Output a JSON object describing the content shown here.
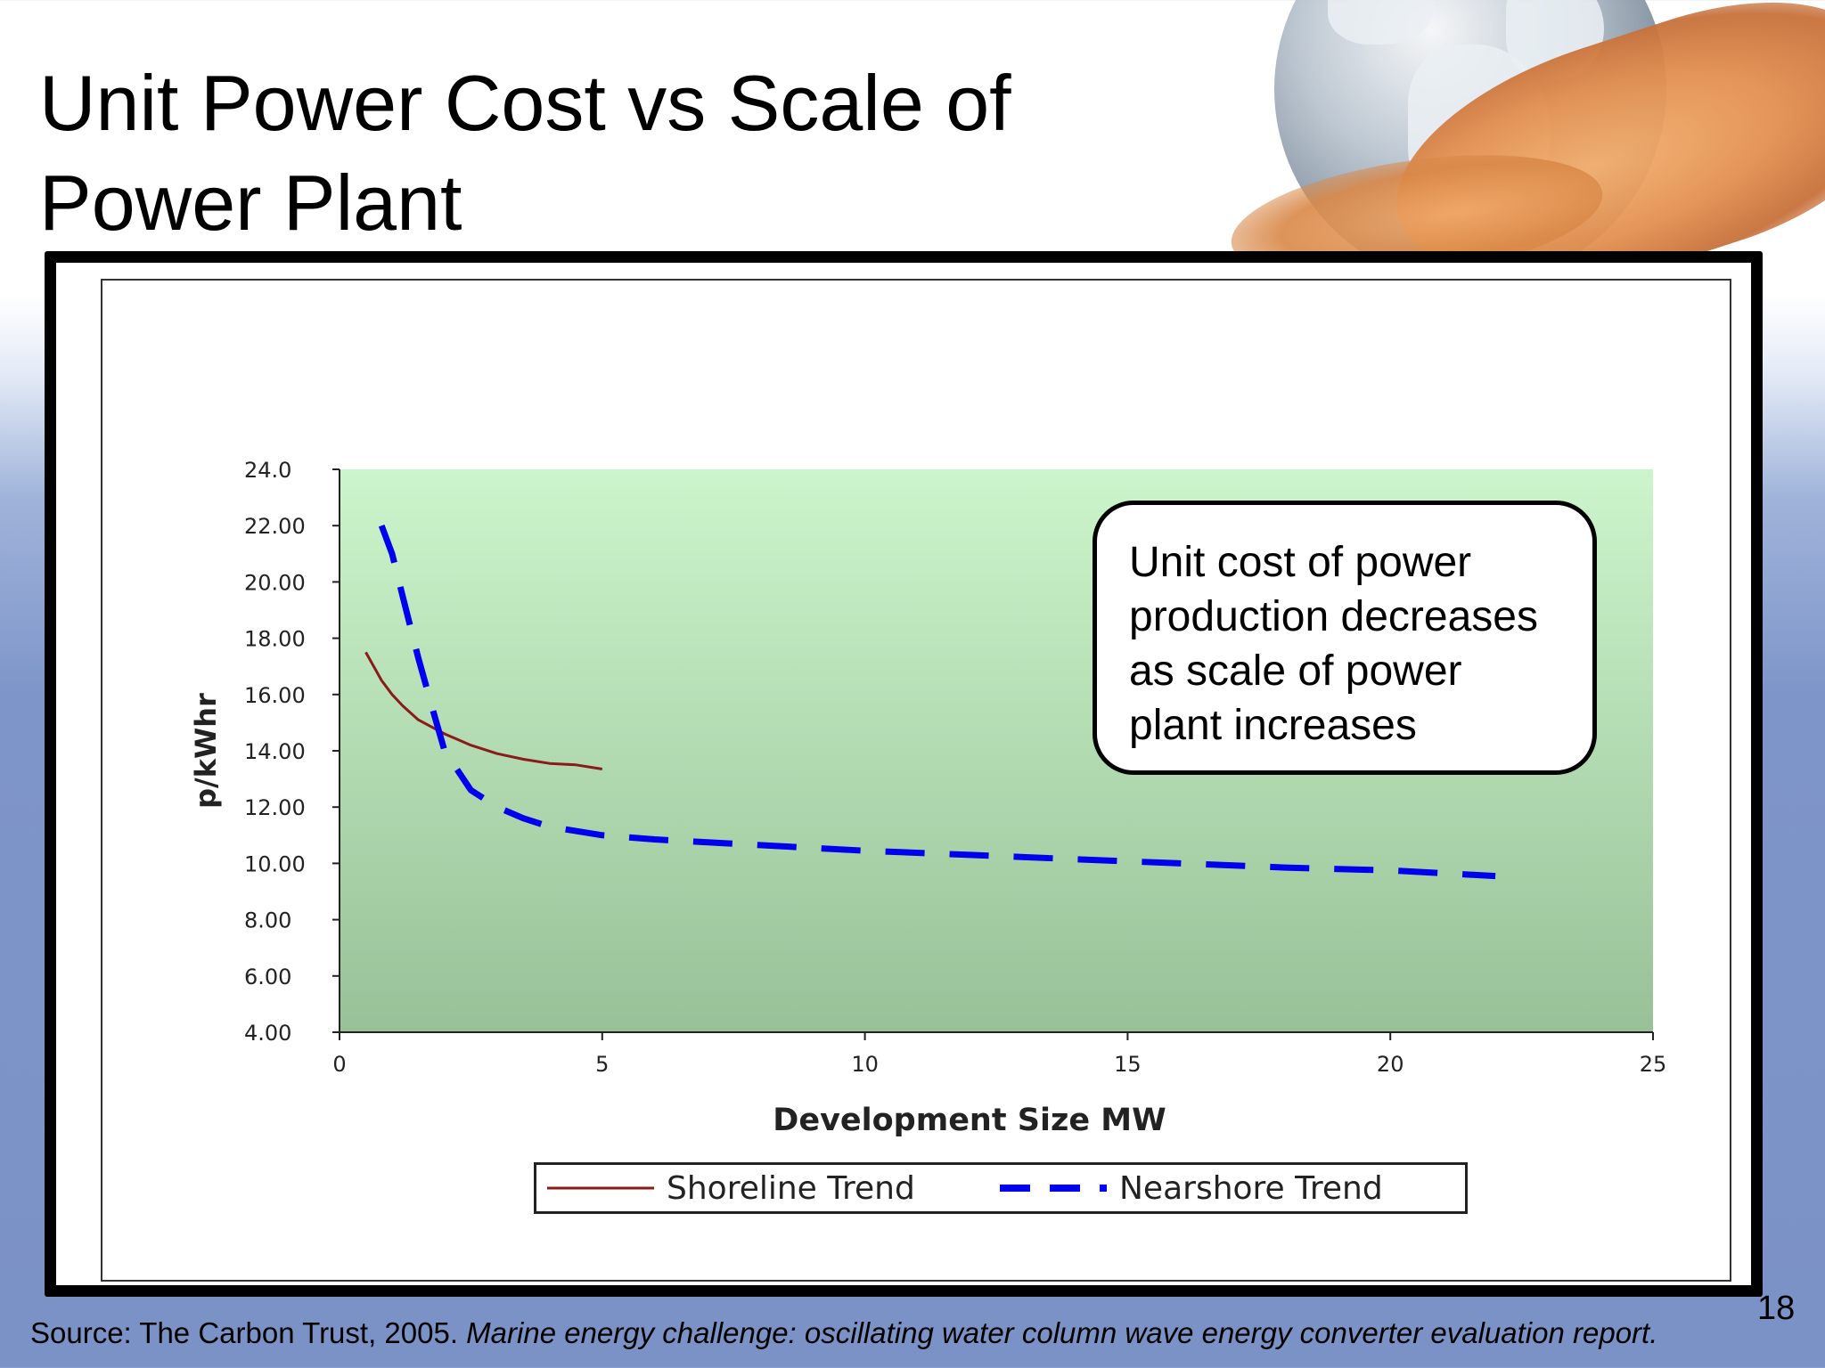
{
  "slide": {
    "title": "Unit Power Cost vs Scale of Power Plant",
    "callout": "Unit cost of power production decreases as scale of power plant increases",
    "slide_number": "18",
    "source_prefix": "Source: The Carbon Trust, 2005.",
    "source_title": "Marine energy challenge: oscillating water column wave energy converter evaluation report."
  },
  "chart_data": {
    "type": "line",
    "xlabel": "Development Size MW",
    "ylabel": "p/kWhr",
    "xlim": [
      0,
      25
    ],
    "ylim": [
      4,
      24
    ],
    "x_ticks": [
      "0",
      "5",
      "10",
      "15",
      "20",
      "25"
    ],
    "y_ticks": [
      "4.00",
      "6.00",
      "8.00",
      "10.00",
      "12.00",
      "14.00",
      "16.00",
      "18.00",
      "20.00",
      "22.00",
      "24.0"
    ],
    "grid": false,
    "legend": "bottom",
    "series": [
      {
        "name": "Shoreline Trend",
        "color": "#8b1a1a",
        "style": "solid",
        "x": [
          0.5,
          0.8,
          1.0,
          1.2,
          1.5,
          1.8,
          2.0,
          2.5,
          3.0,
          3.5,
          4.0,
          4.5,
          5.0
        ],
        "y": [
          17.5,
          16.5,
          16.0,
          15.6,
          15.1,
          14.8,
          14.6,
          14.2,
          13.9,
          13.7,
          13.55,
          13.5,
          13.35
        ]
      },
      {
        "name": "Nearshore Trend",
        "color": "#0000ee",
        "style": "dashed",
        "x": [
          0.8,
          1.0,
          1.2,
          1.5,
          1.8,
          2.0,
          2.5,
          3.0,
          3.5,
          4.0,
          5.0,
          6.0,
          8.0,
          10.0,
          12.0,
          14.0,
          16.0,
          18.0,
          20.0,
          22.0
        ],
        "y": [
          22.0,
          21.0,
          19.5,
          17.3,
          15.3,
          14.0,
          12.6,
          12.0,
          11.6,
          11.3,
          11.0,
          10.85,
          10.65,
          10.45,
          10.3,
          10.15,
          10.0,
          9.85,
          9.75,
          9.55
        ]
      }
    ]
  }
}
